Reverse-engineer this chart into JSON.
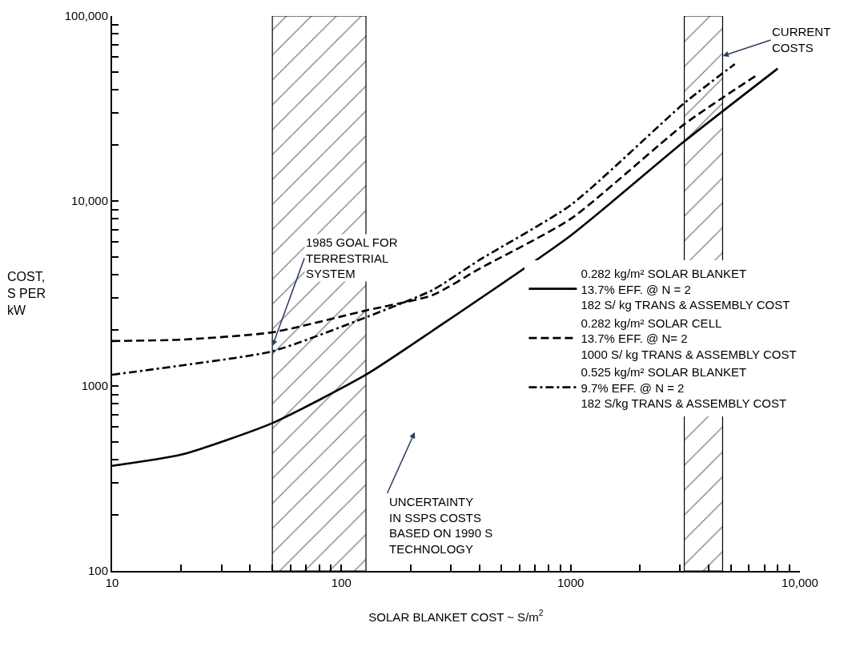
{
  "chart_data": {
    "type": "line",
    "xlabel": "SOLAR BLANKET COST ~ S/m$^{2}$",
    "ylabel": "COST,\nS PER\nkW",
    "log": "xy",
    "grid": false,
    "legend": "right",
    "marker": "none",
    "xlim": [
      10,
      10000
    ],
    "ylim": [
      100,
      100000
    ],
    "xticks": [
      10,
      {
        "value": 20,
        "label": null
      },
      {
        "value": 30,
        "label": null
      },
      {
        "value": 40,
        "label": null
      },
      {
        "value": 50,
        "label": null
      },
      {
        "value": 60,
        "label": null
      },
      {
        "value": 70,
        "label": null
      },
      {
        "value": 80,
        "label": null
      },
      {
        "value": 90,
        "label": null
      },
      100,
      {
        "value": 200,
        "label": null
      },
      {
        "value": 300,
        "label": null
      },
      {
        "value": 400,
        "label": null
      },
      {
        "value": 500,
        "label": null
      },
      {
        "value": 600,
        "label": null
      },
      {
        "value": 700,
        "label": null
      },
      {
        "value": 800,
        "label": null
      },
      {
        "value": 900,
        "label": null
      },
      1000,
      {
        "value": 2000,
        "label": null
      },
      {
        "value": 3000,
        "label": null
      },
      {
        "value": 4000,
        "label": null
      },
      {
        "value": 5000,
        "label": null
      },
      {
        "value": 6000,
        "label": null
      },
      {
        "value": 7000,
        "label": null
      },
      {
        "value": 8000,
        "label": null
      },
      {
        "value": 9000,
        "label": null
      },
      {
        "value": 10000,
        "label": "10,000"
      }
    ],
    "yticks": [
      100,
      {
        "value": 200,
        "label": null
      },
      {
        "value": 300,
        "label": null
      },
      {
        "value": 400,
        "label": null
      },
      {
        "value": 500,
        "label": null
      },
      {
        "value": 600,
        "label": null
      },
      {
        "value": 700,
        "label": null
      },
      {
        "value": 800,
        "label": null
      },
      {
        "value": 900,
        "label": null
      },
      1000,
      {
        "value": 2000,
        "label": null
      },
      {
        "value": 3000,
        "label": null
      },
      {
        "value": 4000,
        "label": null
      },
      {
        "value": 5000,
        "label": null
      },
      {
        "value": 6000,
        "label": null
      },
      {
        "value": 7000,
        "label": null
      },
      {
        "value": 8000,
        "label": null
      },
      {
        "value": 9000,
        "label": null
      },
      {
        "value": 10000,
        "label": "10,000"
      },
      {
        "value": 20000,
        "label": null
      },
      {
        "value": 30000,
        "label": null
      },
      {
        "value": 40000,
        "label": null
      },
      {
        "value": 50000,
        "label": null
      },
      {
        "value": 60000,
        "label": null
      },
      {
        "value": 70000,
        "label": null
      },
      {
        "value": 80000,
        "label": null
      },
      {
        "value": 90000,
        "label": null
      },
      {
        "value": 100000,
        "label": "100,000"
      }
    ],
    "series": [
      {
        "name": "0.282 kg/m² SOLAR BLANKET\n13.7% EFF. @ N = 2\n182 S/ kg TRANS & ASSEMBLY COST",
        "color": "#000000",
        "line_style": "solid",
        "x": [
          10,
          20,
          50,
          128,
          250,
          1000,
          3130,
          8000
        ],
        "values": [
          370,
          425,
          630,
          1150,
          1990,
          6500,
          21000,
          52000
        ]
      },
      {
        "name": "0.282 kg/m² SOLAR CELL\n13.7% EFF. @ N= 2\n1000 S/ kg TRANS & ASSEMBLY COST",
        "color": "#000000",
        "line_style": "dashed",
        "x": [
          10,
          20,
          50,
          128,
          250,
          400,
          1000,
          3130,
          6500
        ],
        "values": [
          1750,
          1780,
          1950,
          2560,
          3100,
          4300,
          8000,
          26000,
          48000
        ]
      },
      {
        "name": "0.525 kg/m² SOLAR BLANKET\n9.7% EFF. @ N = 2\n182 S/kg TRANS & ASSEMBLY COST",
        "color": "#000000",
        "line_style": "dashdot",
        "x": [
          10,
          20,
          50,
          128,
          250,
          400,
          1000,
          3130,
          5200
        ],
        "values": [
          1150,
          1290,
          1540,
          2350,
          3300,
          4800,
          9500,
          33800,
          55000
        ]
      }
    ],
    "bands": [
      {
        "axis": "x",
        "from": 50,
        "to": 128,
        "color": "#000000"
      },
      {
        "axis": "x",
        "from": 3130,
        "to": 4600,
        "color": "#000000"
      }
    ],
    "annotations": [
      {
        "text": "1985 GOAL FOR\nTERRESTRIAL\nSYSTEM",
        "x": 50,
        "y": 1640
      },
      "UNCERTAINTY\nIN SSPS COSTS\nBASED ON 1990 S\nTECHNOLOGY",
      {
        "text": "CURRENT\nCOSTS",
        "x": 4600,
        "y": 60800
      }
    ]
  }
}
